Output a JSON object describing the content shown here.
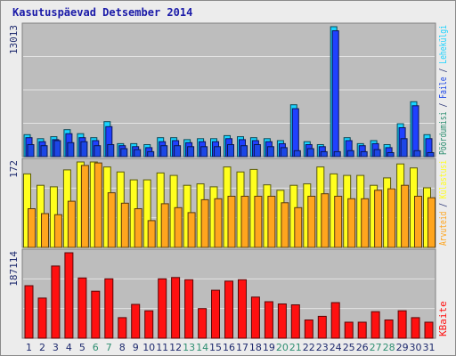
{
  "title": "Kasutuspäevad Detsember 2014",
  "colors": {
    "background": "#ececec",
    "plot_background": "#bdbdbd",
    "grid": "#e4e4e4",
    "pages": "#1c46e6",
    "files": "#2040ff",
    "hits": "#19d3ff",
    "visits": "#ffff1e",
    "visits_dark": "#ffa51e",
    "kbytes": "#ff1010",
    "weekend_label": "#2f8f72",
    "weekday_label": "#1e2a6e"
  },
  "chart_data": [
    {
      "type": "bar",
      "panel": "top",
      "ymax_label": "13013",
      "right_labels": [
        {
          "text": "Pöördumisi",
          "color": "#2f8f72"
        },
        {
          "text": " / ",
          "color": "#1e2a6e"
        },
        {
          "text": "Faile",
          "color": "#1c46e6"
        },
        {
          "text": " / ",
          "color": "#1e2a6e"
        },
        {
          "text": "Lehekülgi",
          "color": "#19d3ff"
        }
      ],
      "categories": [
        "1",
        "2",
        "3",
        "4",
        "5",
        "6",
        "7",
        "8",
        "9",
        "10",
        "11",
        "12",
        "13",
        "14",
        "15",
        "16",
        "17",
        "18",
        "19",
        "20",
        "21",
        "22",
        "23",
        "24",
        "25",
        "26",
        "27",
        "28",
        "29",
        "30",
        "31"
      ],
      "series": [
        {
          "key": "hits",
          "values": [
            2200,
            1800,
            2000,
            2700,
            2300,
            1900,
            3500,
            1300,
            1300,
            1200,
            1900,
            1900,
            1700,
            1800,
            1800,
            2100,
            2000,
            1900,
            1800,
            1600,
            5200,
            1500,
            1200,
            13013,
            1900,
            1300,
            1600,
            1200,
            3300,
            5500,
            2200
          ]
        },
        {
          "key": "files",
          "values": [
            1900,
            1500,
            1700,
            2300,
            1900,
            1600,
            3000,
            1100,
            1000,
            900,
            1500,
            1600,
            1400,
            1500,
            1500,
            1800,
            1700,
            1600,
            1500,
            1300,
            4800,
            1200,
            1000,
            12600,
            1600,
            1100,
            1300,
            900,
            2900,
            5100,
            1800
          ]
        },
        {
          "key": "pages",
          "values": [
            1200,
            1100,
            1600,
            1400,
            1500,
            1100,
            1200,
            800,
            700,
            500,
            1100,
            1100,
            1000,
            1000,
            1000,
            1200,
            1100,
            1200,
            1000,
            900,
            600,
            800,
            500,
            500,
            600,
            500,
            700,
            400,
            1800,
            600,
            400
          ]
        }
      ]
    },
    {
      "type": "bar",
      "panel": "middle",
      "ymax_label": "172",
      "right_labels": [
        {
          "text": "Arvuteid",
          "color": "#ffa51e"
        },
        {
          "text": " / ",
          "color": "#1e2a6e"
        },
        {
          "text": "Külastusi",
          "color": "#ffff1e"
        }
      ],
      "categories": [
        "1",
        "2",
        "3",
        "4",
        "5",
        "6",
        "7",
        "8",
        "9",
        "10",
        "11",
        "12",
        "13",
        "14",
        "15",
        "16",
        "17",
        "18",
        "19",
        "20",
        "21",
        "22",
        "23",
        "24",
        "25",
        "26",
        "27",
        "28",
        "29",
        "30",
        "31"
      ],
      "series": [
        {
          "key": "visits",
          "values": [
            148,
            125,
            122,
            156,
            172,
            172,
            162,
            152,
            136,
            136,
            150,
            145,
            125,
            128,
            122,
            162,
            152,
            157,
            126,
            115,
            125,
            128,
            162,
            148,
            145,
            145,
            125,
            140,
            168,
            160,
            120
          ]
        },
        {
          "key": "visits_dark",
          "values": [
            78,
            68,
            66,
            93,
            165,
            170,
            110,
            89,
            78,
            54,
            88,
            80,
            70,
            96,
            98,
            103,
            103,
            103,
            103,
            90,
            80,
            103,
            108,
            103,
            98,
            98,
            115,
            118,
            125,
            103,
            100
          ]
        }
      ]
    },
    {
      "type": "bar",
      "panel": "bottom",
      "ymax_label": "187114",
      "right_labels": [
        {
          "text": "KBaite",
          "color": "#ff1010"
        }
      ],
      "categories": [
        "1",
        "2",
        "3",
        "4",
        "5",
        "6",
        "7",
        "8",
        "9",
        "10",
        "11",
        "12",
        "13",
        "14",
        "15",
        "16",
        "17",
        "18",
        "19",
        "20",
        "21",
        "22",
        "23",
        "24",
        "25",
        "26",
        "27",
        "28",
        "29",
        "30",
        "31"
      ],
      "series": [
        {
          "key": "kbytes",
          "values": [
            115000,
            88000,
            158000,
            187114,
            132000,
            103000,
            130000,
            45000,
            74000,
            60000,
            130000,
            133000,
            128000,
            65000,
            105000,
            125000,
            128000,
            90000,
            80000,
            75000,
            73000,
            40000,
            48000,
            78000,
            35000,
            35000,
            58000,
            40000,
            60000,
            45000,
            35000
          ]
        }
      ]
    }
  ],
  "x_labels": [
    {
      "text": "1",
      "weekend": false
    },
    {
      "text": "2",
      "weekend": false
    },
    {
      "text": "3",
      "weekend": false
    },
    {
      "text": "4",
      "weekend": false
    },
    {
      "text": "5",
      "weekend": false
    },
    {
      "text": "6",
      "weekend": true
    },
    {
      "text": "7",
      "weekend": true
    },
    {
      "text": "8",
      "weekend": false
    },
    {
      "text": "9",
      "weekend": false
    },
    {
      "text": "10",
      "weekend": false
    },
    {
      "text": "11",
      "weekend": false
    },
    {
      "text": "12",
      "weekend": false
    },
    {
      "text": "13",
      "weekend": true
    },
    {
      "text": "14",
      "weekend": true
    },
    {
      "text": "15",
      "weekend": false
    },
    {
      "text": "16",
      "weekend": false
    },
    {
      "text": "17",
      "weekend": false
    },
    {
      "text": "18",
      "weekend": false
    },
    {
      "text": "19",
      "weekend": false
    },
    {
      "text": "20",
      "weekend": true
    },
    {
      "text": "21",
      "weekend": true
    },
    {
      "text": "22",
      "weekend": false
    },
    {
      "text": "23",
      "weekend": false
    },
    {
      "text": "24",
      "weekend": false
    },
    {
      "text": "25",
      "weekend": false
    },
    {
      "text": "26",
      "weekend": false
    },
    {
      "text": "27",
      "weekend": true
    },
    {
      "text": "28",
      "weekend": true
    },
    {
      "text": "29",
      "weekend": false
    },
    {
      "text": "30",
      "weekend": false
    },
    {
      "text": "31",
      "weekend": false
    }
  ]
}
